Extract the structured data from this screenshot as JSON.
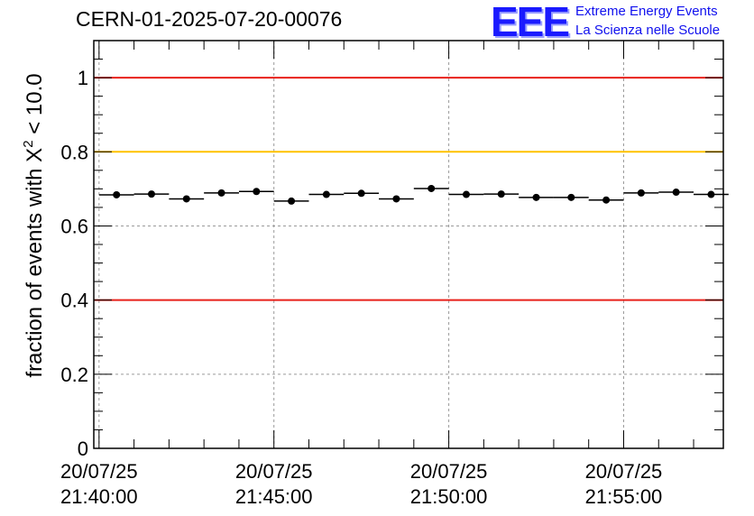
{
  "header": {
    "title": "CERN-01-2025-07-20-00076",
    "logo_mark": "EEE",
    "logo_line1": "Extreme Energy Events",
    "logo_line2": "La Scienza nelle Scuole"
  },
  "chart_data": {
    "type": "scatter",
    "ylabel_prefix": "fraction of events with X",
    "ylabel_superscript": "2",
    "ylabel_suffix": " < 10.0",
    "ylim": [
      0,
      1.1
    ],
    "yticks": [
      0,
      0.2,
      0.4,
      0.6,
      0.8,
      1
    ],
    "ytick_labels": [
      "0",
      "0.2",
      "0.4",
      "0.6",
      "0.8",
      "1"
    ],
    "xlim_minutes": [
      -0.15,
      17.85
    ],
    "xticks_minutes": [
      0,
      5,
      10,
      15
    ],
    "xtick_labels": [
      {
        "date": "20/07/25",
        "time": "21:40:00"
      },
      {
        "date": "20/07/25",
        "time": "21:45:00"
      },
      {
        "date": "20/07/25",
        "time": "21:50:00"
      },
      {
        "date": "20/07/25",
        "time": "21:55:00"
      }
    ],
    "grid": true,
    "bin_width_minutes": 1,
    "x_minutes": [
      0.5,
      1.5,
      2.5,
      3.5,
      4.5,
      5.5,
      6.5,
      7.5,
      8.5,
      9.5,
      10.5,
      11.5,
      12.5,
      13.5,
      14.5,
      15.5,
      16.5,
      17.5
    ],
    "values": [
      0.684,
      0.686,
      0.673,
      0.689,
      0.693,
      0.667,
      0.685,
      0.688,
      0.673,
      0.701,
      0.685,
      0.686,
      0.677,
      0.677,
      0.67,
      0.689,
      0.691,
      0.685
    ],
    "reference_lines": [
      {
        "value": 1.0,
        "color": "#e8201a"
      },
      {
        "value": 0.8,
        "color": "#ffc200"
      },
      {
        "value": 0.4,
        "color": "#e8201a"
      }
    ]
  }
}
